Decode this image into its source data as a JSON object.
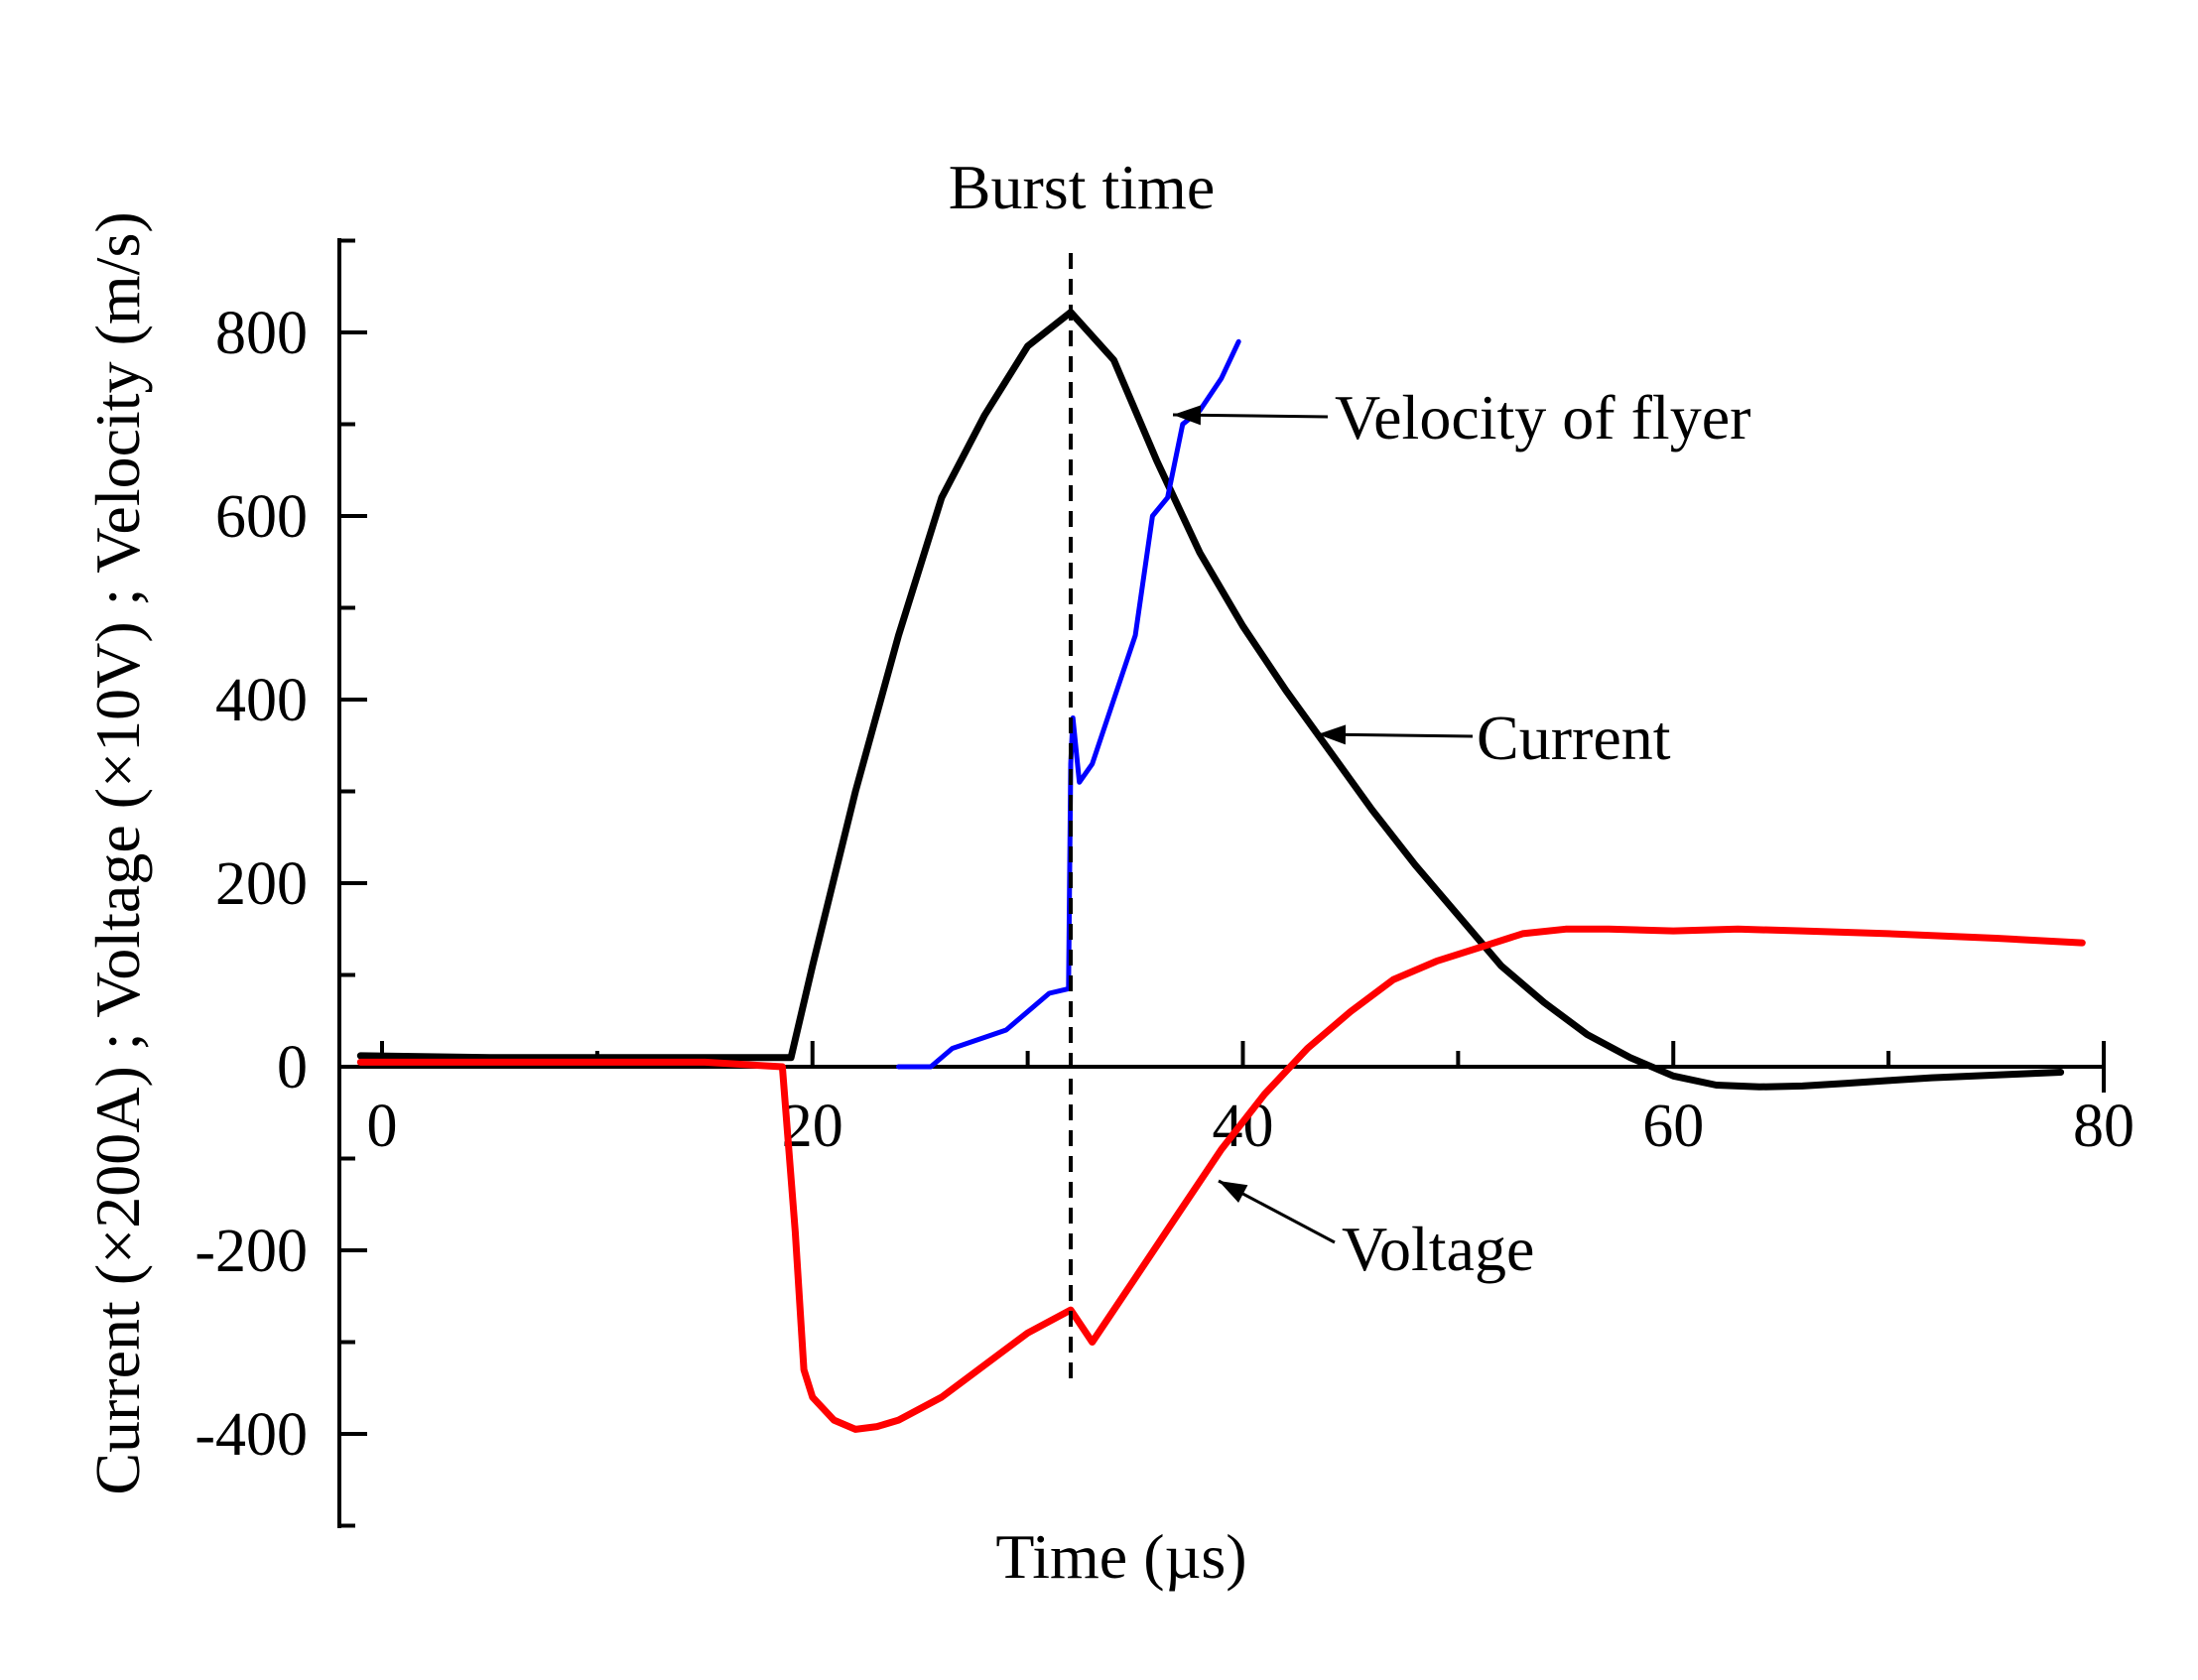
{
  "chart_data": {
    "type": "line",
    "title": "",
    "xlabel": "Time (µs)",
    "ylabel": "Current (×200A) ;   Voltage (×10V) ;   Velocity (m/s)",
    "xlim": [
      -1,
      79
    ],
    "ylim": [
      -500,
      900
    ],
    "x_ticks": [
      0,
      20,
      40,
      60,
      80
    ],
    "x_tick_labels": [
      "0",
      "20",
      "40",
      "60",
      "80"
    ],
    "y_ticks": [
      -400,
      -200,
      0,
      200,
      400,
      600,
      800
    ],
    "y_tick_labels": [
      "-400",
      "-200",
      "0",
      "200",
      "400",
      "600",
      "800"
    ],
    "burst_time": 32,
    "burst_label": "Burst time",
    "series": [
      {
        "name": "Current",
        "color": "#000000",
        "x": [
          -1,
          5,
          10,
          15,
          19,
          20,
          22,
          24,
          26,
          28,
          30,
          32,
          34,
          36,
          38,
          40,
          42,
          44,
          46,
          48,
          50,
          52,
          54,
          56,
          58,
          60,
          62,
          64,
          66,
          68,
          70,
          72,
          74,
          76,
          78
        ],
        "y": [
          12,
          10,
          10,
          10,
          10,
          110,
          300,
          470,
          620,
          710,
          785,
          822,
          770,
          660,
          560,
          480,
          410,
          345,
          280,
          220,
          165,
          110,
          70,
          35,
          10,
          -10,
          -20,
          -22,
          -21,
          -18,
          -15,
          -12,
          -10,
          -8,
          -6
        ]
      },
      {
        "name": "Voltage",
        "color": "#ff0000",
        "x": [
          -1,
          5,
          10,
          15,
          18.6,
          19.2,
          19.6,
          20,
          21,
          22,
          23,
          24,
          26,
          28,
          30,
          32,
          33,
          35,
          37,
          39,
          41,
          43,
          45,
          47,
          49,
          51,
          53,
          55,
          57,
          60,
          63,
          66,
          70,
          75,
          79
        ],
        "y": [
          5,
          5,
          5,
          5,
          0,
          -180,
          -330,
          -360,
          -385,
          -395,
          -392,
          -385,
          -360,
          -325,
          -290,
          -265,
          -300,
          -230,
          -160,
          -90,
          -30,
          20,
          60,
          95,
          115,
          130,
          145,
          150,
          150,
          148,
          150,
          148,
          145,
          140,
          135
        ]
      },
      {
        "name": "Velocity of flyer",
        "color": "#0000ff",
        "x": [
          24,
          25.5,
          26.5,
          29,
          31,
          31.9,
          32,
          32.1,
          32.4,
          33,
          34,
          35,
          35.8,
          36.5,
          37.2,
          38,
          39,
          39.8
        ],
        "y": [
          0,
          0,
          20,
          40,
          80,
          85,
          330,
          380,
          310,
          330,
          400,
          470,
          600,
          620,
          700,
          715,
          750,
          790
        ]
      }
    ],
    "annotations": [
      {
        "text": "Velocity of flyer",
        "target_series": "Velocity of flyer"
      },
      {
        "text": "Current",
        "target_series": "Current"
      },
      {
        "text": "Voltage",
        "target_series": "Voltage"
      }
    ]
  }
}
